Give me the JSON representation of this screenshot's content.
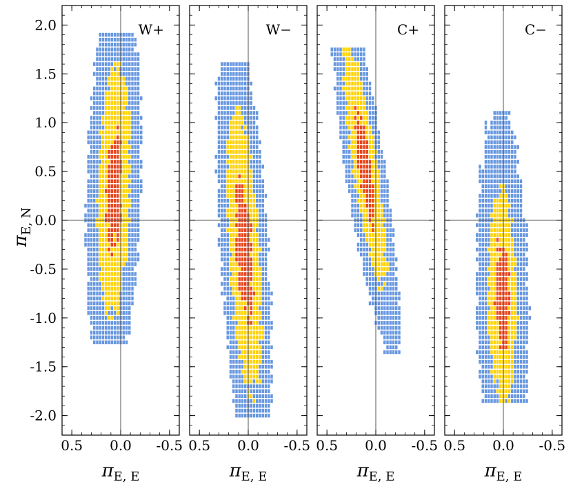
{
  "chart_data": {
    "type": "heatmap",
    "description_units": "binned posterior samples; sigma level per cell: 1 = red (1σ), 2 = yellow (2σ), 3 = blue (3σ)",
    "ylabel": {
      "symbol": "π",
      "subscript": "E, N"
    },
    "xlabel": {
      "symbol": "π",
      "subscript": "E, E"
    },
    "xlim": [
      0.6,
      -0.6
    ],
    "ylim": [
      -2.2,
      2.2
    ],
    "x_ticks": [
      0.5,
      0.0,
      -0.5
    ],
    "x_tick_labels": [
      "0.5",
      "0.0",
      "-0.5"
    ],
    "y_ticks": [
      2.0,
      1.5,
      1.0,
      0.5,
      0.0,
      -0.5,
      -1.0,
      -1.5,
      -2.0
    ],
    "y_tick_labels": [
      "2.0",
      "1.5",
      "1.0",
      "0.5",
      "0.0",
      "-0.5",
      "-1.0",
      "-1.5",
      "-2.0"
    ],
    "colors": {
      "sigma1": "#e8461e",
      "sigma2": "#ffd200",
      "sigma3": "#6797e0"
    },
    "panels": [
      {
        "label": "W+",
        "center": [
          0.07,
          0.3
        ],
        "cov": [
          [
            0.0072,
            -0.012
          ],
          [
            -0.012,
            0.42
          ]
        ],
        "levels": [
          0.9,
          2.0,
          3.3
        ],
        "ymax": 1.95,
        "ymin": -1.25
      },
      {
        "label": "W−",
        "center": [
          0.04,
          -0.3
        ],
        "cov": [
          [
            0.0075,
            0.03
          ],
          [
            0.03,
            0.52
          ]
        ],
        "levels": [
          1.0,
          2.05,
          3.25
        ],
        "ymax": 1.65,
        "ymin": -2.05
      },
      {
        "label": "C+",
        "center": [
          0.11,
          0.55
        ],
        "cov": [
          [
            0.012,
            0.055
          ],
          [
            0.055,
            0.38
          ]
        ],
        "levels": [
          0.95,
          2.0,
          3.25
        ],
        "ymax": 1.75,
        "ymin": -1.4
      },
      {
        "label": "C−",
        "center": [
          0.01,
          -0.78
        ],
        "cov": [
          [
            0.0065,
            0.006
          ],
          [
            0.006,
            0.36
          ]
        ],
        "levels": [
          0.9,
          1.85,
          3.3
        ],
        "ymax": 1.15,
        "ymin": -1.85
      }
    ]
  }
}
